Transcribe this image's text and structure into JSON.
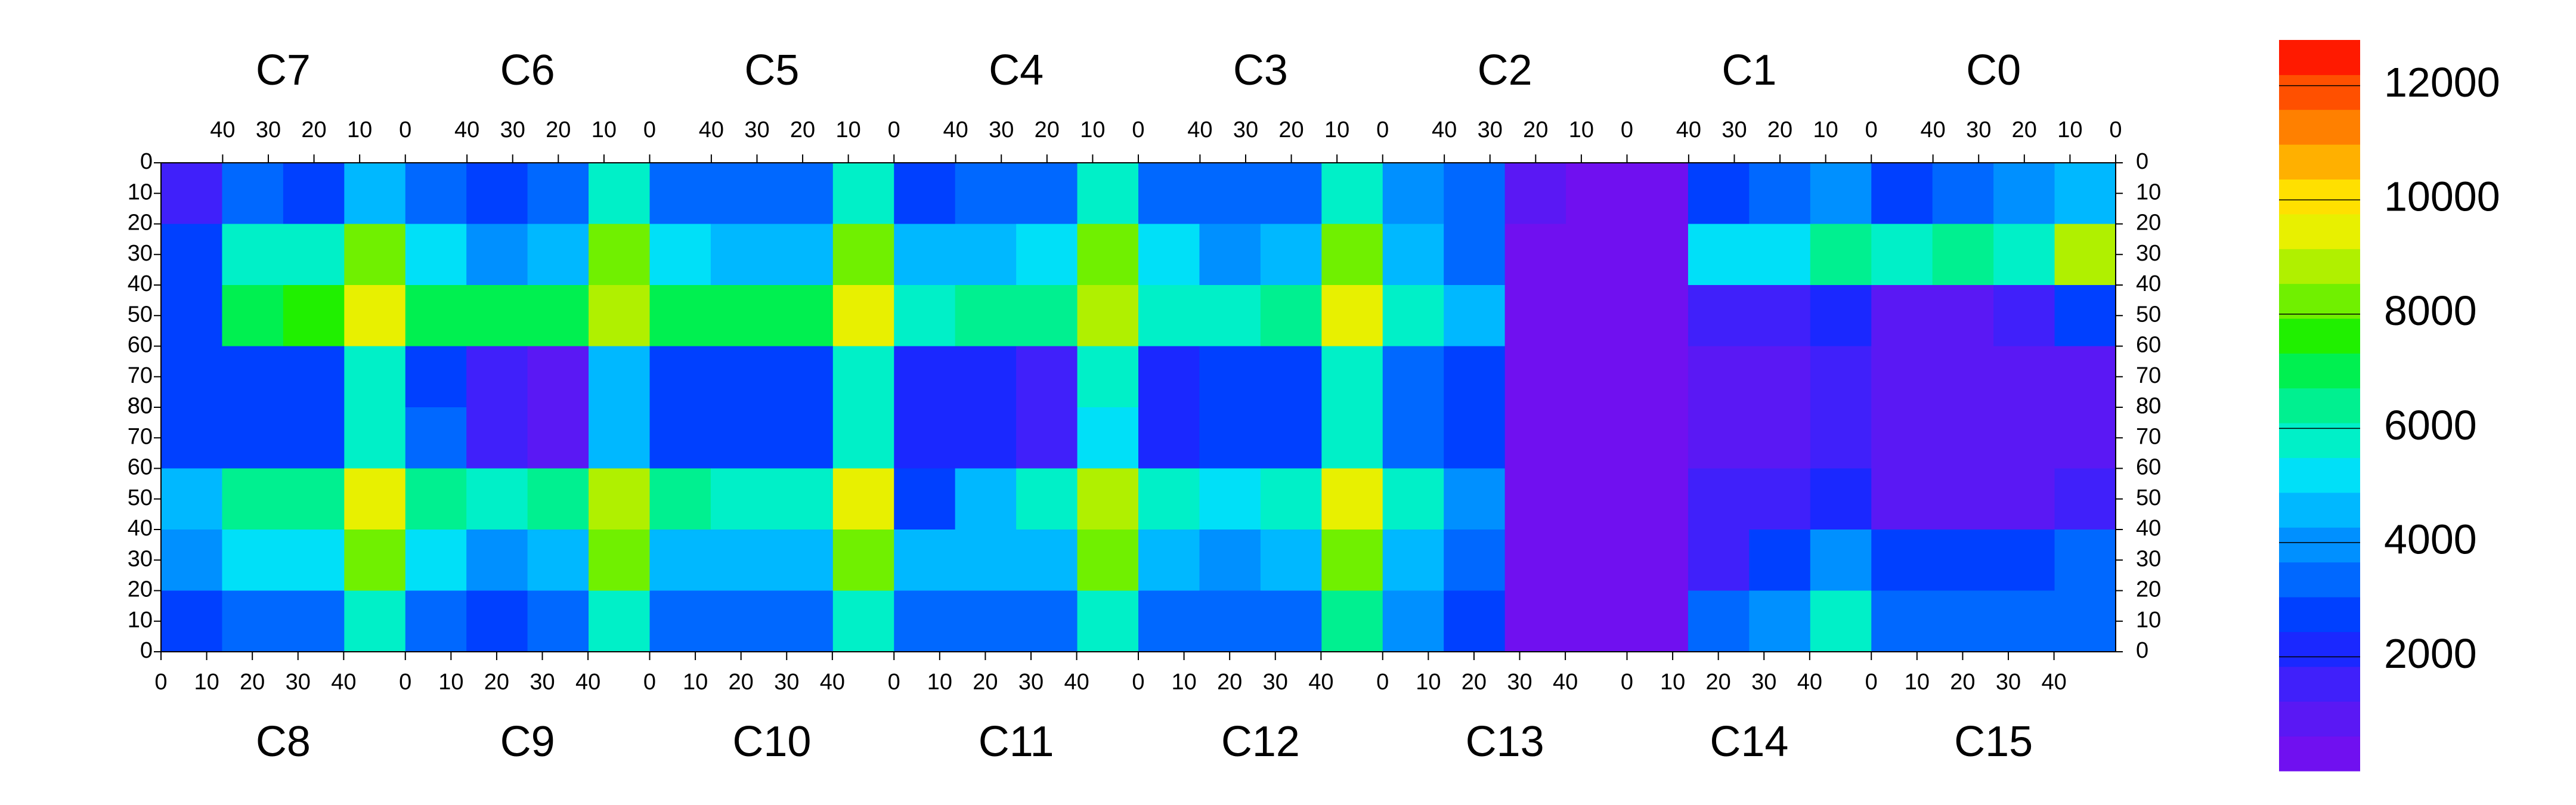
{
  "chart_data": {
    "type": "heatmap",
    "top_chips": [
      "C7",
      "C6",
      "C5",
      "C4",
      "C3",
      "C2",
      "C1",
      "C0"
    ],
    "bottom_chips": [
      "C8",
      "C9",
      "C10",
      "C11",
      "C12",
      "C13",
      "C14",
      "C15"
    ],
    "xlim": [
      0,
      53.5
    ],
    "xticks": [
      0,
      10,
      20,
      30,
      40
    ],
    "ylim": [
      0,
      80
    ],
    "yticks": [
      0,
      10,
      20,
      30,
      40,
      50,
      60,
      70,
      80
    ],
    "zlim": [
      0,
      12800
    ],
    "zticks": [
      2000,
      4000,
      6000,
      8000,
      10000,
      12000
    ],
    "colors": [
      "#7010f0",
      "#5a18f4",
      "#4020fa",
      "#1a28ff",
      "#0040ff",
      "#0068ff",
      "#0090ff",
      "#00b8ff",
      "#00e0f8",
      "#00f0c8",
      "#00f090",
      "#00f050",
      "#20f000",
      "#70f000",
      "#b0f000",
      "#e8f000",
      "#ffe000",
      "#ffb000",
      "#ff8000",
      "#ff5000",
      "#ff1a00"
    ],
    "rows": [
      [
        1500,
        3500,
        3000,
        4500,
        3500,
        3000,
        3500,
        5500,
        3500,
        3500,
        3500,
        6000,
        3000,
        3500,
        3500,
        5500,
        3500,
        3500,
        3500,
        6000,
        4000,
        3500,
        800,
        500,
        500,
        3000,
        3500,
        4000,
        2500,
        3500,
        4000,
        4500
      ],
      [
        3000,
        5500,
        5500,
        8500,
        5000,
        4000,
        4500,
        8000,
        5000,
        4500,
        4500,
        8500,
        4500,
        4500,
        5000,
        8000,
        5000,
        4000,
        4500,
        8500,
        4500,
        3500,
        600,
        500,
        500,
        5000,
        5000,
        6500,
        5500,
        6500,
        6000,
        9000
      ],
      [
        3000,
        7000,
        7500,
        9500,
        7000,
        7000,
        7000,
        9000,
        7000,
        7000,
        7000,
        9500,
        6000,
        6500,
        6500,
        9000,
        6000,
        6000,
        6500,
        9500,
        5500,
        4500,
        600,
        500,
        500,
        1500,
        1500,
        2000,
        1000,
        1000,
        1500,
        2500
      ],
      [
        2500,
        3000,
        3000,
        5500,
        3000,
        1500,
        1200,
        4500,
        3000,
        3000,
        3000,
        6000,
        2000,
        2000,
        1500,
        5500,
        2000,
        3000,
        3000,
        6000,
        3500,
        3000,
        600,
        500,
        500,
        1000,
        1000,
        1500,
        1000,
        1000,
        1000,
        1000
      ],
      [
        2500,
        3000,
        3000,
        5500,
        3500,
        1500,
        1200,
        4500,
        3000,
        3000,
        3000,
        5500,
        2000,
        2000,
        1500,
        5000,
        2000,
        3000,
        3000,
        5500,
        3500,
        3000,
        600,
        500,
        500,
        1000,
        1000,
        1500,
        1000,
        1000,
        1000,
        1000
      ],
      [
        4500,
        6500,
        6500,
        9500,
        6500,
        6000,
        6500,
        9000,
        6500,
        6000,
        6000,
        9500,
        2500,
        4500,
        5500,
        9000,
        6000,
        5000,
        5500,
        9500,
        5500,
        4000,
        600,
        500,
        500,
        1500,
        1500,
        2000,
        1000,
        1000,
        1200,
        1500
      ],
      [
        4000,
        5000,
        5000,
        8500,
        5000,
        4000,
        4500,
        8000,
        4500,
        4500,
        4500,
        8500,
        4500,
        4500,
        4500,
        8000,
        4500,
        4000,
        4500,
        8500,
        4500,
        3500,
        600,
        500,
        500,
        1500,
        2500,
        4000,
        2500,
        2500,
        3000,
        3500
      ],
      [
        3000,
        3500,
        3500,
        6000,
        3500,
        3000,
        3500,
        6000,
        3500,
        3500,
        3500,
        6000,
        3500,
        3500,
        3500,
        6000,
        3500,
        3500,
        3500,
        6500,
        4000,
        3000,
        600,
        500,
        500,
        3500,
        4000,
        5500,
        3500,
        3500,
        3500,
        3500
      ]
    ]
  }
}
